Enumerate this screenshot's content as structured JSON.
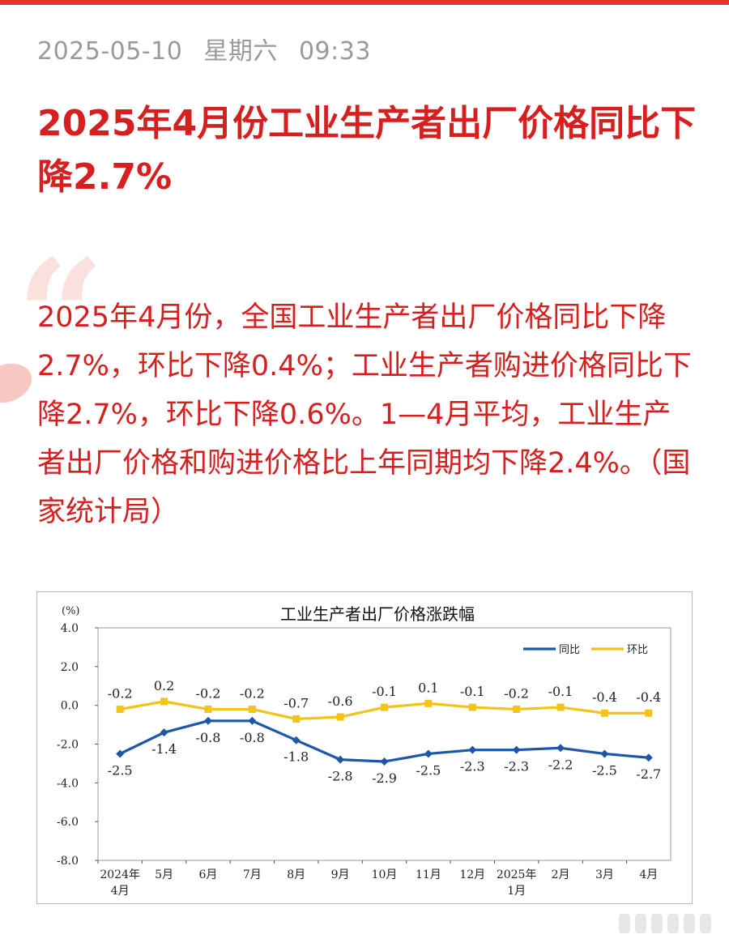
{
  "article": {
    "date": "2025-05-10",
    "weekday": "星期六",
    "time": "09:33",
    "headline": "2025年4月份工业生产者出厂价格同比下降2.7%",
    "quote_mark": "“",
    "quote_text": "2025年4月份，全国工业生产者出厂价格同比下降2.7%，环比下降0.4%；工业生产者购进价格同比下降2.7%，环比下降0.6%。1—4月平均，工业生产者出厂价格和购进价格比上年同期均下降2.4%。（国家统计局）"
  },
  "chart_data": {
    "type": "line",
    "title": "工业生产者出厂价格涨跌幅",
    "unit": "(%)",
    "categories": [
      [
        "2024年",
        "4月"
      ],
      [
        "5月"
      ],
      [
        "6月"
      ],
      [
        "7月"
      ],
      [
        "8月"
      ],
      [
        "9月"
      ],
      [
        "10月"
      ],
      [
        "11月"
      ],
      [
        "12月"
      ],
      [
        "2025年",
        "1月"
      ],
      [
        "2月"
      ],
      [
        "3月"
      ],
      [
        "4月"
      ]
    ],
    "ylim": [
      -8.0,
      4.0
    ],
    "yticks": [
      "4.0",
      "2.0",
      "0.0",
      "-2.0",
      "-4.0",
      "-6.0",
      "-8.0"
    ],
    "legend_position": "top-right",
    "series": [
      {
        "name": "同比",
        "color": "#1f57a8",
        "marker": "diamond",
        "label_position": "below",
        "values": [
          -2.5,
          -1.4,
          -0.8,
          -0.8,
          -1.8,
          -2.8,
          -2.9,
          -2.5,
          -2.3,
          -2.3,
          -2.2,
          -2.5,
          -2.7
        ],
        "labels": [
          "-2.5",
          "-1.4",
          "-0.8",
          "-0.8",
          "-1.8",
          "-2.8",
          "-2.9",
          "-2.5",
          "-2.3",
          "-2.3",
          "-2.2",
          "-2.5",
          "-2.7"
        ]
      },
      {
        "name": "环比",
        "color": "#f2c418",
        "marker": "square",
        "label_position": "above",
        "values": [
          -0.2,
          0.2,
          -0.2,
          -0.2,
          -0.7,
          -0.6,
          -0.1,
          0.1,
          -0.1,
          -0.2,
          -0.1,
          -0.4,
          -0.4
        ],
        "labels": [
          "-0.2",
          "0.2",
          "-0.2",
          "-0.2",
          "-0.7",
          "-0.6",
          "-0.1",
          "0.1",
          "-0.1",
          "-0.2",
          "-0.1",
          "-0.4",
          "-0.4"
        ]
      }
    ]
  }
}
